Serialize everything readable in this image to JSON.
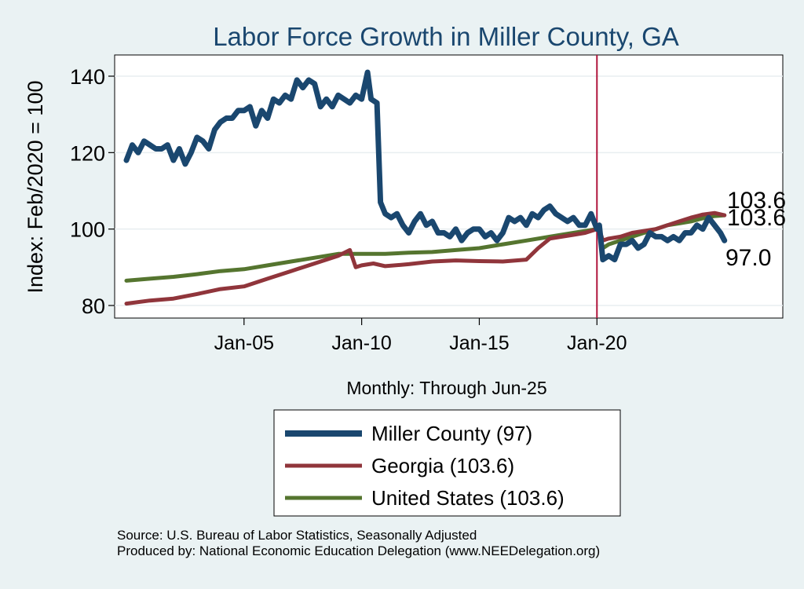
{
  "chart_data": {
    "type": "line",
    "title": "Labor Force Growth in Miller  County, GA",
    "xlabel": "Monthly: Through Jun-25",
    "ylabel": "Index: Feb/2020 = 100",
    "x_start": "Jan-2000",
    "x_end": "Jun-2025",
    "xlim_years": [
      1999.5,
      2027.9
    ],
    "ylim": [
      77,
      145
    ],
    "y_ticks": [
      80,
      100,
      120,
      140
    ],
    "x_ticks": [
      {
        "year": 2005,
        "label": "Jan-05"
      },
      {
        "year": 2010,
        "label": "Jan-10"
      },
      {
        "year": 2015,
        "label": "Jan-15"
      },
      {
        "year": 2020,
        "label": "Jan-20"
      }
    ],
    "reference_line_year": 2020.0,
    "grid": true,
    "legend_position": "bottom",
    "series": [
      {
        "name": "Miller  County",
        "legend_label": "Miller  County (97)",
        "end_label": "97.0",
        "color": "#1a476f",
        "width": 7,
        "points": [
          [
            2000.0,
            118
          ],
          [
            2000.25,
            122
          ],
          [
            2000.5,
            120
          ],
          [
            2000.75,
            123
          ],
          [
            2001.0,
            122
          ],
          [
            2001.25,
            121
          ],
          [
            2001.5,
            121
          ],
          [
            2001.75,
            122
          ],
          [
            2002.0,
            118
          ],
          [
            2002.25,
            121
          ],
          [
            2002.5,
            117
          ],
          [
            2002.75,
            120
          ],
          [
            2003.0,
            124
          ],
          [
            2003.25,
            123
          ],
          [
            2003.5,
            121
          ],
          [
            2003.75,
            126
          ],
          [
            2004.0,
            128
          ],
          [
            2004.25,
            129
          ],
          [
            2004.5,
            129
          ],
          [
            2004.75,
            131
          ],
          [
            2005.0,
            131
          ],
          [
            2005.25,
            132
          ],
          [
            2005.5,
            127
          ],
          [
            2005.75,
            131
          ],
          [
            2006.0,
            129
          ],
          [
            2006.25,
            134
          ],
          [
            2006.5,
            133
          ],
          [
            2006.75,
            135
          ],
          [
            2007.0,
            134
          ],
          [
            2007.25,
            139
          ],
          [
            2007.5,
            137
          ],
          [
            2007.75,
            139
          ],
          [
            2008.0,
            138
          ],
          [
            2008.25,
            132
          ],
          [
            2008.5,
            134
          ],
          [
            2008.75,
            132
          ],
          [
            2009.0,
            135
          ],
          [
            2009.25,
            134
          ],
          [
            2009.5,
            133
          ],
          [
            2009.75,
            135
          ],
          [
            2010.0,
            134
          ],
          [
            2010.25,
            141
          ],
          [
            2010.4,
            134
          ],
          [
            2010.65,
            133
          ],
          [
            2010.8,
            107
          ],
          [
            2011.0,
            104
          ],
          [
            2011.25,
            103
          ],
          [
            2011.5,
            104
          ],
          [
            2011.75,
            101
          ],
          [
            2012.0,
            99
          ],
          [
            2012.25,
            102
          ],
          [
            2012.5,
            104
          ],
          [
            2012.75,
            101
          ],
          [
            2013.0,
            102
          ],
          [
            2013.25,
            99
          ],
          [
            2013.5,
            99
          ],
          [
            2013.75,
            98
          ],
          [
            2014.0,
            100
          ],
          [
            2014.25,
            97
          ],
          [
            2014.5,
            99
          ],
          [
            2014.75,
            100
          ],
          [
            2015.0,
            100
          ],
          [
            2015.25,
            98
          ],
          [
            2015.5,
            99
          ],
          [
            2015.75,
            97
          ],
          [
            2016.0,
            99
          ],
          [
            2016.25,
            103
          ],
          [
            2016.5,
            102
          ],
          [
            2016.75,
            103
          ],
          [
            2017.0,
            101
          ],
          [
            2017.25,
            104
          ],
          [
            2017.5,
            103
          ],
          [
            2017.75,
            105
          ],
          [
            2018.0,
            106
          ],
          [
            2018.25,
            104
          ],
          [
            2018.5,
            103
          ],
          [
            2018.75,
            102
          ],
          [
            2019.0,
            103
          ],
          [
            2019.25,
            101
          ],
          [
            2019.5,
            101
          ],
          [
            2019.75,
            104
          ],
          [
            2020.0,
            100
          ],
          [
            2020.1,
            101
          ],
          [
            2020.25,
            92
          ],
          [
            2020.5,
            93
          ],
          [
            2020.75,
            92
          ],
          [
            2021.0,
            96
          ],
          [
            2021.25,
            96
          ],
          [
            2021.5,
            97
          ],
          [
            2021.75,
            95
          ],
          [
            2022.0,
            96
          ],
          [
            2022.25,
            99
          ],
          [
            2022.5,
            98
          ],
          [
            2022.75,
            98
          ],
          [
            2023.0,
            97
          ],
          [
            2023.25,
            98
          ],
          [
            2023.5,
            97
          ],
          [
            2023.75,
            99
          ],
          [
            2024.0,
            99
          ],
          [
            2024.25,
            101
          ],
          [
            2024.5,
            100
          ],
          [
            2024.75,
            103
          ],
          [
            2025.0,
            101
          ],
          [
            2025.25,
            99
          ],
          [
            2025.42,
            97
          ]
        ]
      },
      {
        "name": "Georgia",
        "legend_label": "Georgia (103.6)",
        "end_label": "103.6",
        "color": "#90353b",
        "width": 5,
        "points": [
          [
            2000.0,
            80.5
          ],
          [
            2001.0,
            81.3
          ],
          [
            2002.0,
            81.8
          ],
          [
            2003.0,
            83
          ],
          [
            2004.0,
            84.3
          ],
          [
            2005.0,
            85
          ],
          [
            2006.0,
            87
          ],
          [
            2007.0,
            89
          ],
          [
            2008.0,
            91
          ],
          [
            2009.0,
            93
          ],
          [
            2009.5,
            94.5
          ],
          [
            2009.75,
            90
          ],
          [
            2010.0,
            90.5
          ],
          [
            2010.5,
            91
          ],
          [
            2011.0,
            90.3
          ],
          [
            2012.0,
            90.8
          ],
          [
            2013.0,
            91.5
          ],
          [
            2014.0,
            91.8
          ],
          [
            2015.0,
            91.6
          ],
          [
            2016.0,
            91.5
          ],
          [
            2017.0,
            92
          ],
          [
            2017.5,
            95
          ],
          [
            2018.0,
            97.5
          ],
          [
            2018.5,
            98
          ],
          [
            2019.0,
            98.5
          ],
          [
            2019.5,
            99
          ],
          [
            2020.0,
            100
          ],
          [
            2020.1,
            100
          ],
          [
            2020.25,
            97
          ],
          [
            2020.5,
            97.5
          ],
          [
            2021.0,
            98
          ],
          [
            2021.5,
            99
          ],
          [
            2022.0,
            99.5
          ],
          [
            2022.5,
            100
          ],
          [
            2023.0,
            101
          ],
          [
            2023.5,
            102
          ],
          [
            2024.0,
            103
          ],
          [
            2024.5,
            103.8
          ],
          [
            2025.0,
            104.2
          ],
          [
            2025.42,
            103.6
          ]
        ]
      },
      {
        "name": "United States",
        "legend_label": "United States (103.6)",
        "end_label": "103.6",
        "color": "#55752f",
        "width": 5,
        "points": [
          [
            2000.0,
            86.5
          ],
          [
            2001.0,
            87
          ],
          [
            2002.0,
            87.5
          ],
          [
            2003.0,
            88.2
          ],
          [
            2004.0,
            89
          ],
          [
            2005.0,
            89.5
          ],
          [
            2006.0,
            90.5
          ],
          [
            2007.0,
            91.5
          ],
          [
            2008.0,
            92.5
          ],
          [
            2009.0,
            93.5
          ],
          [
            2010.0,
            93.5
          ],
          [
            2011.0,
            93.5
          ],
          [
            2012.0,
            93.8
          ],
          [
            2013.0,
            94
          ],
          [
            2014.0,
            94.5
          ],
          [
            2015.0,
            95
          ],
          [
            2016.0,
            96
          ],
          [
            2017.0,
            97
          ],
          [
            2018.0,
            98
          ],
          [
            2019.0,
            99
          ],
          [
            2020.0,
            100
          ],
          [
            2020.1,
            99.5
          ],
          [
            2020.25,
            95
          ],
          [
            2020.5,
            96
          ],
          [
            2021.0,
            97
          ],
          [
            2021.5,
            98
          ],
          [
            2022.0,
            99
          ],
          [
            2022.5,
            100
          ],
          [
            2023.0,
            101
          ],
          [
            2023.5,
            101.5
          ],
          [
            2024.0,
            102
          ],
          [
            2024.5,
            102.8
          ],
          [
            2025.0,
            103.4
          ],
          [
            2025.42,
            103.6
          ]
        ]
      }
    ]
  },
  "source_line": "Source: U.S. Bureau of Labor Statistics, Seasonally Adjusted",
  "produced_line": "Produced by: National Economic Education Delegation (www.NEEDelegation.org)",
  "colors": {
    "background": "#eaf2f3",
    "plot_background": "#ffffff",
    "title": "#1a476f",
    "reference_line": "#b0163c",
    "grid": "#e8eef0"
  }
}
